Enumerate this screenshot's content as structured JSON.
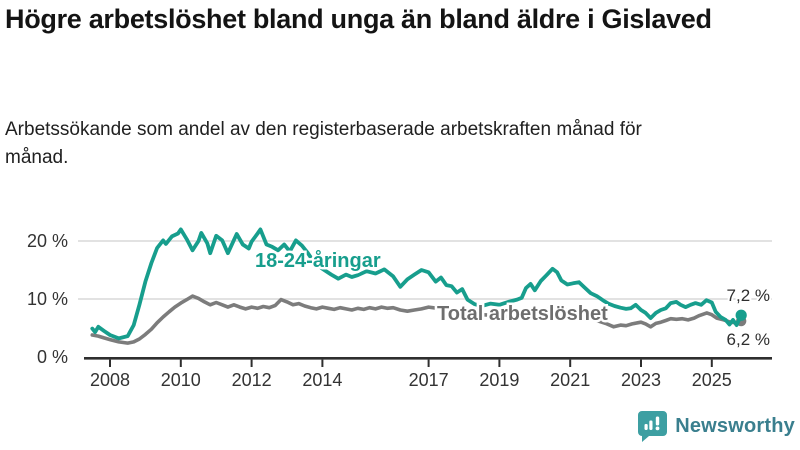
{
  "title": "Högre arbetslöshet bland unga än bland äldre i Gislaved",
  "subtitle": "Arbetssökande som andel av den registerbaserade arbetskraften månad för månad.",
  "branding": {
    "name": "Newsworthy",
    "logo_icon": "bar-chart-speech-bubble",
    "icon_color": "#3d9fa2",
    "text_color": "#3a7f8e"
  },
  "chart_data": {
    "type": "line",
    "title": "",
    "xlabel": "",
    "ylabel": "",
    "grid": "horizontal-light",
    "x_axis": {
      "tick_values": [
        2008,
        2010,
        2012,
        2014,
        2017,
        2019,
        2021,
        2023,
        2025
      ],
      "tick_labels": [
        "2008",
        "2010",
        "2012",
        "2014",
        "2017",
        "2019",
        "2021",
        "2023",
        "2025"
      ],
      "range": [
        2007.4,
        2026.3
      ]
    },
    "y_axis": {
      "tick_values": [
        0,
        10,
        20
      ],
      "tick_labels": [
        "0 %",
        "10 %",
        "20 %"
      ],
      "range": [
        0,
        23.5
      ]
    },
    "series": [
      {
        "name": "Total arbetslöshet",
        "color": "#7c7c7c",
        "label_color": "#6e6e6e",
        "end_label": "6,2 %",
        "end_value": 6.2,
        "points": [
          [
            2007.5,
            3.8
          ],
          [
            2007.67,
            3.6
          ],
          [
            2007.83,
            3.3
          ],
          [
            2008.0,
            3.0
          ],
          [
            2008.25,
            2.6
          ],
          [
            2008.5,
            2.4
          ],
          [
            2008.67,
            2.6
          ],
          [
            2008.83,
            3.1
          ],
          [
            2009.0,
            3.9
          ],
          [
            2009.17,
            4.8
          ],
          [
            2009.33,
            5.9
          ],
          [
            2009.5,
            6.9
          ],
          [
            2009.67,
            7.8
          ],
          [
            2009.83,
            8.6
          ],
          [
            2010.0,
            9.3
          ],
          [
            2010.17,
            9.9
          ],
          [
            2010.33,
            10.5
          ],
          [
            2010.5,
            10.1
          ],
          [
            2010.67,
            9.5
          ],
          [
            2010.83,
            9.0
          ],
          [
            2011.0,
            9.4
          ],
          [
            2011.17,
            9.0
          ],
          [
            2011.33,
            8.6
          ],
          [
            2011.5,
            9.0
          ],
          [
            2011.67,
            8.6
          ],
          [
            2011.83,
            8.3
          ],
          [
            2012.0,
            8.6
          ],
          [
            2012.17,
            8.4
          ],
          [
            2012.33,
            8.7
          ],
          [
            2012.5,
            8.5
          ],
          [
            2012.67,
            8.9
          ],
          [
            2012.83,
            9.9
          ],
          [
            2013.0,
            9.5
          ],
          [
            2013.17,
            9.0
          ],
          [
            2013.33,
            9.2
          ],
          [
            2013.5,
            8.8
          ],
          [
            2013.67,
            8.5
          ],
          [
            2013.83,
            8.3
          ],
          [
            2014.0,
            8.6
          ],
          [
            2014.17,
            8.4
          ],
          [
            2014.33,
            8.2
          ],
          [
            2014.5,
            8.5
          ],
          [
            2014.67,
            8.3
          ],
          [
            2014.83,
            8.1
          ],
          [
            2015.0,
            8.4
          ],
          [
            2015.17,
            8.2
          ],
          [
            2015.33,
            8.5
          ],
          [
            2015.5,
            8.3
          ],
          [
            2015.67,
            8.6
          ],
          [
            2015.83,
            8.4
          ],
          [
            2016.0,
            8.5
          ],
          [
            2016.2,
            8.1
          ],
          [
            2016.4,
            7.9
          ],
          [
            2016.6,
            8.1
          ],
          [
            2016.8,
            8.3
          ],
          [
            2017.0,
            8.6
          ],
          [
            2017.25,
            8.4
          ],
          [
            2017.5,
            8.2
          ],
          [
            2017.75,
            7.9
          ],
          [
            2018.0,
            7.7
          ],
          [
            2018.25,
            7.5
          ],
          [
            2018.5,
            7.3
          ],
          [
            2018.75,
            7.2
          ],
          [
            2019.0,
            7.1
          ],
          [
            2019.25,
            7.0
          ],
          [
            2019.5,
            7.0
          ],
          [
            2019.75,
            7.1
          ],
          [
            2020.0,
            7.3
          ],
          [
            2020.25,
            8.0
          ],
          [
            2020.5,
            8.4
          ],
          [
            2020.75,
            8.2
          ],
          [
            2021.0,
            7.8
          ],
          [
            2021.25,
            7.3
          ],
          [
            2021.5,
            6.8
          ],
          [
            2021.75,
            6.3
          ],
          [
            2022.0,
            5.8
          ],
          [
            2022.23,
            5.2
          ],
          [
            2022.42,
            5.5
          ],
          [
            2022.58,
            5.4
          ],
          [
            2022.75,
            5.7
          ],
          [
            2022.9,
            5.9
          ],
          [
            2023.0,
            6.0
          ],
          [
            2023.13,
            5.7
          ],
          [
            2023.27,
            5.2
          ],
          [
            2023.42,
            5.8
          ],
          [
            2023.56,
            6.0
          ],
          [
            2023.7,
            6.3
          ],
          [
            2023.84,
            6.6
          ],
          [
            2024.0,
            6.5
          ],
          [
            2024.17,
            6.6
          ],
          [
            2024.33,
            6.4
          ],
          [
            2024.5,
            6.7
          ],
          [
            2024.63,
            7.1
          ],
          [
            2024.86,
            7.6
          ],
          [
            2025.0,
            7.3
          ],
          [
            2025.14,
            6.7
          ],
          [
            2025.34,
            6.4
          ],
          [
            2025.53,
            6.0
          ],
          [
            2025.7,
            5.9
          ],
          [
            2025.83,
            6.2
          ]
        ]
      },
      {
        "name": "18-24-åringar",
        "color": "#179e8d",
        "label_color": "#179e8d",
        "end_label": "7,2 %",
        "end_value": 7.2,
        "points": [
          [
            2007.5,
            4.9
          ],
          [
            2007.58,
            4.3
          ],
          [
            2007.67,
            5.2
          ],
          [
            2007.83,
            4.5
          ],
          [
            2008.0,
            3.8
          ],
          [
            2008.25,
            3.2
          ],
          [
            2008.5,
            3.6
          ],
          [
            2008.67,
            5.5
          ],
          [
            2008.83,
            9.0
          ],
          [
            2009.0,
            13.0
          ],
          [
            2009.17,
            16.2
          ],
          [
            2009.33,
            18.8
          ],
          [
            2009.5,
            20.1
          ],
          [
            2009.58,
            19.5
          ],
          [
            2009.75,
            20.8
          ],
          [
            2009.92,
            21.3
          ],
          [
            2010.0,
            22.0
          ],
          [
            2010.17,
            20.3
          ],
          [
            2010.33,
            18.4
          ],
          [
            2010.5,
            20.0
          ],
          [
            2010.58,
            21.4
          ],
          [
            2010.75,
            19.6
          ],
          [
            2010.83,
            17.9
          ],
          [
            2011.0,
            20.9
          ],
          [
            2011.17,
            20.1
          ],
          [
            2011.33,
            17.9
          ],
          [
            2011.42,
            19.1
          ],
          [
            2011.58,
            21.2
          ],
          [
            2011.75,
            19.4
          ],
          [
            2011.92,
            18.7
          ],
          [
            2012.0,
            19.9
          ],
          [
            2012.17,
            21.3
          ],
          [
            2012.25,
            22.0
          ],
          [
            2012.42,
            19.4
          ],
          [
            2012.58,
            19.0
          ],
          [
            2012.75,
            18.4
          ],
          [
            2012.92,
            19.4
          ],
          [
            2013.08,
            18.2
          ],
          [
            2013.25,
            20.1
          ],
          [
            2013.42,
            19.2
          ],
          [
            2013.58,
            18.0
          ],
          [
            2013.75,
            16.5
          ],
          [
            2014.0,
            15.2
          ],
          [
            2014.25,
            14.2
          ],
          [
            2014.45,
            13.5
          ],
          [
            2014.67,
            14.2
          ],
          [
            2014.83,
            13.8
          ],
          [
            2015.0,
            14.1
          ],
          [
            2015.25,
            14.8
          ],
          [
            2015.5,
            14.4
          ],
          [
            2015.75,
            15.1
          ],
          [
            2016.0,
            13.9
          ],
          [
            2016.2,
            12.1
          ],
          [
            2016.4,
            13.4
          ],
          [
            2016.6,
            14.2
          ],
          [
            2016.8,
            15.0
          ],
          [
            2017.0,
            14.6
          ],
          [
            2017.2,
            13.0
          ],
          [
            2017.35,
            13.7
          ],
          [
            2017.5,
            12.4
          ],
          [
            2017.65,
            12.2
          ],
          [
            2017.8,
            11.1
          ],
          [
            2017.95,
            11.7
          ],
          [
            2018.1,
            9.9
          ],
          [
            2018.3,
            9.1
          ],
          [
            2018.5,
            8.8
          ],
          [
            2018.75,
            9.2
          ],
          [
            2019.0,
            9.0
          ],
          [
            2019.25,
            9.5
          ],
          [
            2019.5,
            9.9
          ],
          [
            2019.63,
            10.2
          ],
          [
            2019.75,
            11.9
          ],
          [
            2019.88,
            12.6
          ],
          [
            2020.0,
            11.5
          ],
          [
            2020.17,
            13.1
          ],
          [
            2020.33,
            14.1
          ],
          [
            2020.5,
            15.2
          ],
          [
            2020.63,
            14.6
          ],
          [
            2020.75,
            13.2
          ],
          [
            2020.92,
            12.5
          ],
          [
            2021.08,
            12.7
          ],
          [
            2021.25,
            12.9
          ],
          [
            2021.42,
            11.9
          ],
          [
            2021.58,
            11.0
          ],
          [
            2021.75,
            10.5
          ],
          [
            2021.92,
            9.8
          ],
          [
            2022.08,
            9.2
          ],
          [
            2022.25,
            8.8
          ],
          [
            2022.42,
            8.5
          ],
          [
            2022.58,
            8.3
          ],
          [
            2022.71,
            8.4
          ],
          [
            2022.85,
            9.0
          ],
          [
            2023.0,
            8.1
          ],
          [
            2023.13,
            7.6
          ],
          [
            2023.27,
            6.7
          ],
          [
            2023.42,
            7.6
          ],
          [
            2023.56,
            8.1
          ],
          [
            2023.7,
            8.4
          ],
          [
            2023.84,
            9.3
          ],
          [
            2024.0,
            9.5
          ],
          [
            2024.12,
            9.0
          ],
          [
            2024.26,
            8.6
          ],
          [
            2024.4,
            9.0
          ],
          [
            2024.54,
            9.3
          ],
          [
            2024.7,
            9.0
          ],
          [
            2024.85,
            9.8
          ],
          [
            2025.0,
            9.4
          ],
          [
            2025.11,
            7.8
          ],
          [
            2025.25,
            6.9
          ],
          [
            2025.39,
            6.4
          ],
          [
            2025.5,
            5.6
          ],
          [
            2025.6,
            6.4
          ],
          [
            2025.7,
            5.5
          ],
          [
            2025.83,
            7.2
          ]
        ]
      }
    ]
  }
}
